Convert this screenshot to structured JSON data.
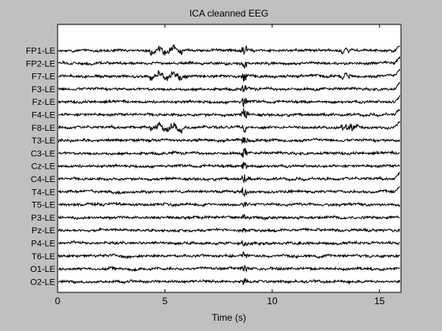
{
  "figure": {
    "background": "#c0c0c0",
    "axes_background": "#ffffff",
    "trace_color": "#000000"
  },
  "chart_data": {
    "type": "line",
    "title": "ICA cleanned EEG",
    "xlabel": "Time (s)",
    "ylabel": "",
    "xlim": [
      0,
      16
    ],
    "xticks": [
      0,
      5,
      10,
      15
    ],
    "xtick_labels": [
      "0",
      "5",
      "10",
      "15"
    ],
    "grid": false,
    "channels": [
      "FP1-LE",
      "FP2-LE",
      "F7-LE",
      "F3-LE",
      "Fz-LE",
      "F4-LE",
      "F8-LE",
      "T3-LE",
      "C3-LE",
      "Cz-LE",
      "C4-LE",
      "T4-LE",
      "T5-LE",
      "P3-LE",
      "Pz-LE",
      "P4-LE",
      "T6-LE",
      "O1-LE",
      "O2-LE"
    ]
  }
}
